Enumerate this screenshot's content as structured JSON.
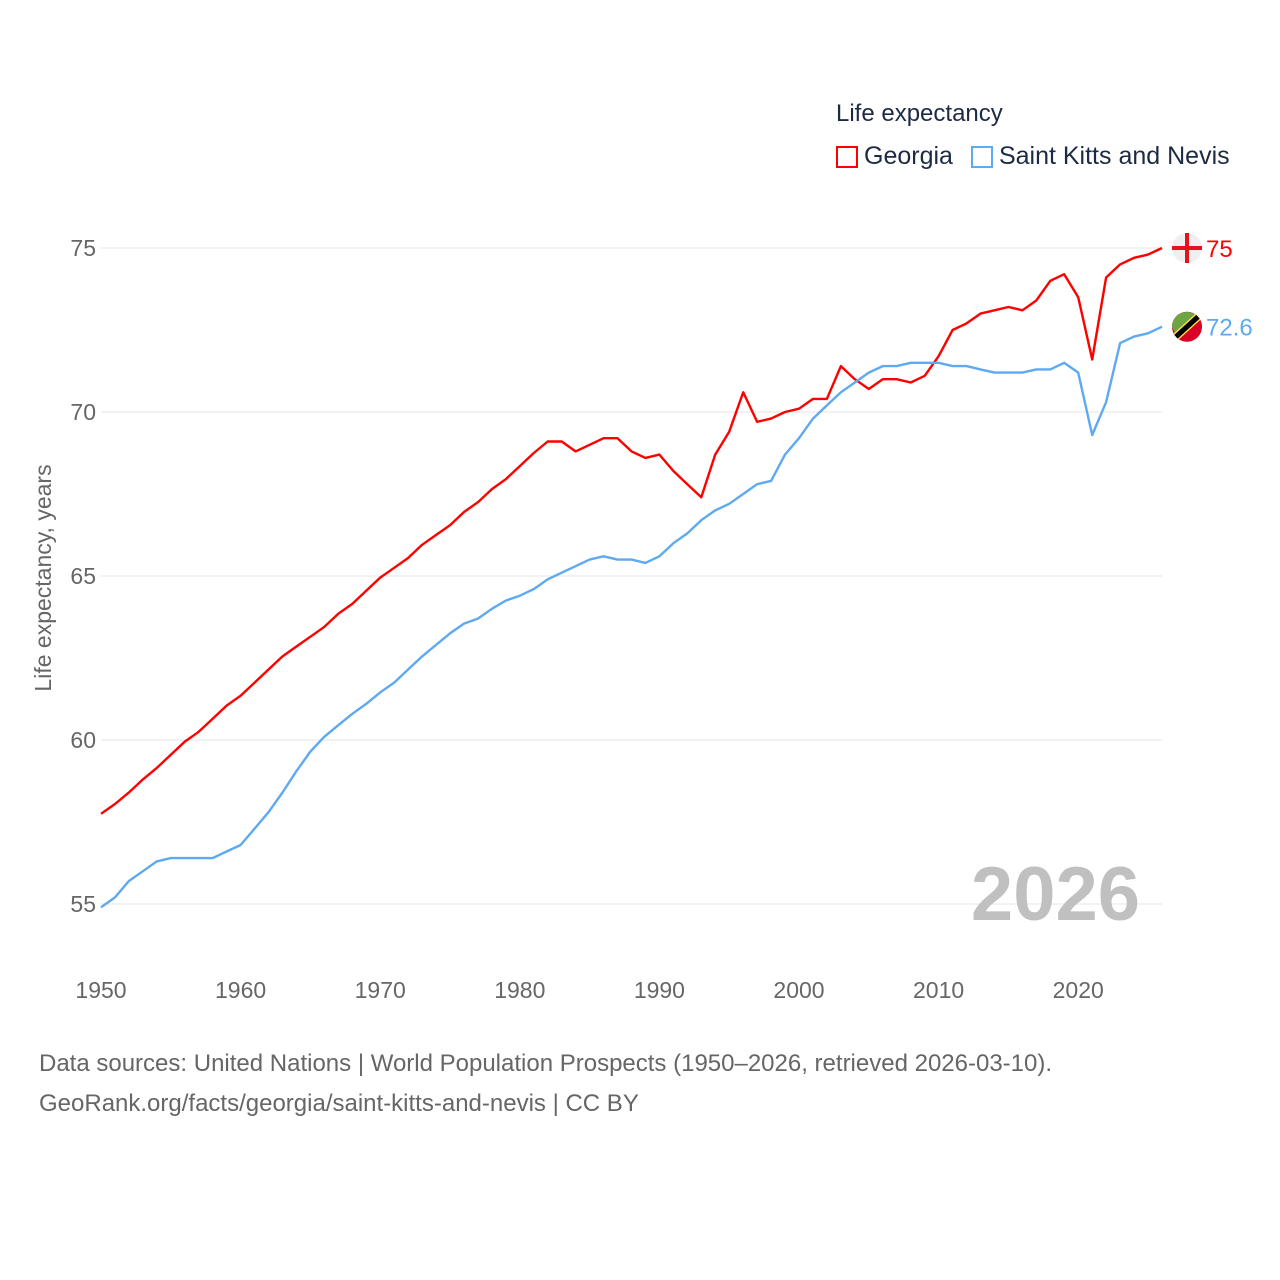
{
  "chart_data": {
    "type": "line",
    "legend_title": "Life expectancy",
    "ylabel": "Life expectancy, years",
    "xlabel": "",
    "xlim": [
      1950,
      2026
    ],
    "ylim": [
      54,
      76
    ],
    "x_ticks": [
      1950,
      1960,
      1970,
      1980,
      1990,
      2000,
      2010,
      2020
    ],
    "y_ticks": [
      55,
      60,
      65,
      70,
      75
    ],
    "grid": true,
    "legend_position": "top-right",
    "year_watermark": "2026",
    "x_start": 1950,
    "series": [
      {
        "name": "Georgia",
        "color": "#ff0000",
        "end_label": "75",
        "values": [
          57.75,
          58.05,
          58.4,
          58.8,
          59.15,
          59.55,
          59.95,
          60.25,
          60.65,
          61.05,
          61.35,
          61.75,
          62.15,
          62.55,
          62.85,
          63.15,
          63.45,
          63.85,
          64.15,
          64.55,
          64.95,
          65.25,
          65.55,
          65.95,
          66.25,
          66.55,
          66.95,
          67.25,
          67.65,
          67.95,
          68.35,
          68.75,
          69.1,
          69.1,
          68.8,
          69.0,
          69.2,
          69.2,
          68.8,
          68.6,
          68.7,
          68.2,
          67.8,
          67.4,
          68.7,
          69.4,
          70.6,
          69.7,
          69.8,
          70.0,
          70.1,
          70.4,
          70.4,
          71.4,
          71.0,
          70.7,
          71.0,
          71.0,
          70.9,
          71.1,
          71.7,
          72.5,
          72.7,
          73.0,
          73.1,
          73.2,
          73.1,
          73.4,
          74.0,
          74.2,
          73.5,
          71.6,
          74.1,
          74.5,
          74.7,
          74.8,
          75.0
        ]
      },
      {
        "name": "Saint Kitts and Nevis",
        "color": "#5ea9ef",
        "end_label": "72.6",
        "values": [
          54.9,
          55.2,
          55.7,
          56.0,
          56.3,
          56.4,
          56.4,
          56.4,
          56.4,
          56.6,
          56.8,
          57.3,
          57.8,
          58.4,
          59.05,
          59.65,
          60.1,
          60.45,
          60.8,
          61.1,
          61.45,
          61.75,
          62.15,
          62.55,
          62.9,
          63.25,
          63.55,
          63.7,
          64.0,
          64.25,
          64.4,
          64.6,
          64.9,
          65.1,
          65.3,
          65.5,
          65.6,
          65.5,
          65.5,
          65.4,
          65.6,
          66.0,
          66.3,
          66.7,
          67.0,
          67.2,
          67.5,
          67.8,
          67.9,
          68.7,
          69.2,
          69.8,
          70.2,
          70.6,
          70.9,
          71.2,
          71.4,
          71.4,
          71.5,
          71.5,
          71.5,
          71.4,
          71.4,
          71.3,
          71.2,
          71.2,
          71.2,
          71.3,
          71.3,
          71.5,
          71.2,
          69.3,
          70.3,
          72.1,
          72.3,
          72.4,
          72.6
        ]
      }
    ]
  },
  "source_line1": "Data sources: United Nations | World Population Prospects (1950–2026, retrieved 2026-03-10).",
  "source_line2": "GeoRank.org/facts/georgia/saint-kitts-and-nevis | CC BY"
}
